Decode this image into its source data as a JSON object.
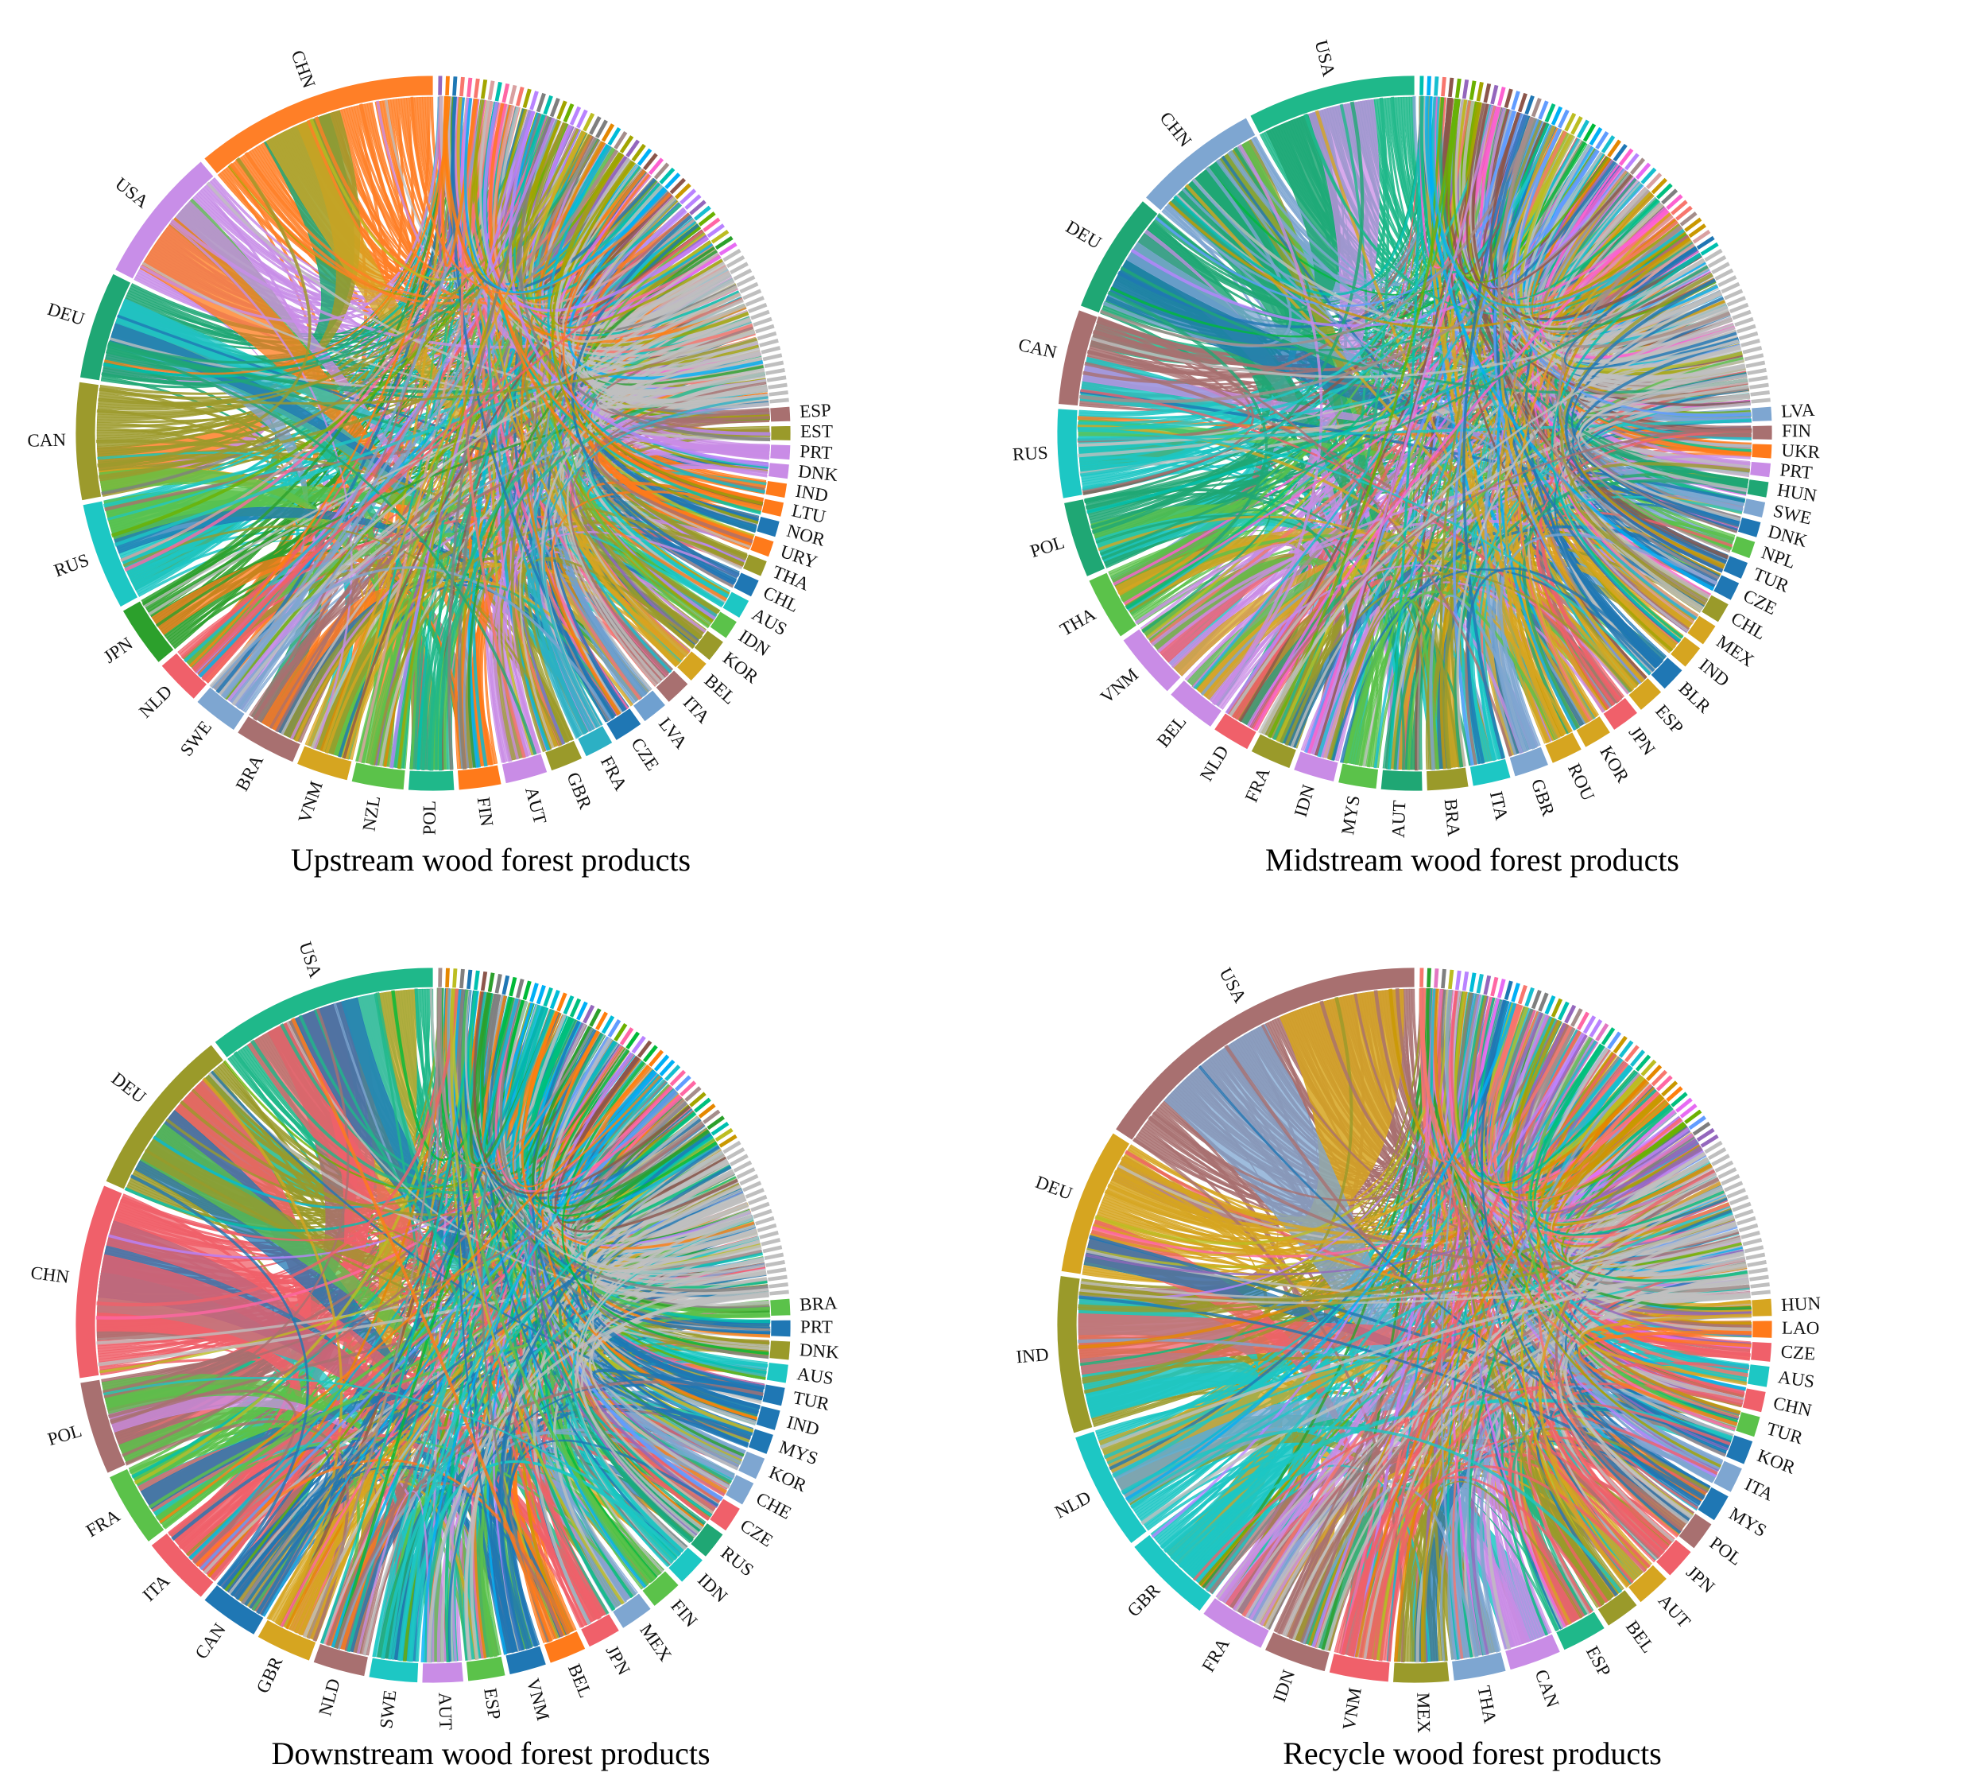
{
  "palette": [
    "#f8766d",
    "#e58700",
    "#c99800",
    "#a3a500",
    "#6bb100",
    "#00ba38",
    "#00bf7d",
    "#00c0af",
    "#00bcd8",
    "#00b0f6",
    "#619cff",
    "#b983ff",
    "#e76bf3",
    "#fd61d1",
    "#ff67a4",
    "#d9a0a0",
    "#a58d8b",
    "#8c564b",
    "#ff7f0e",
    "#2ca02c",
    "#1f77b4",
    "#17becf",
    "#bcbd22",
    "#9467bd",
    "#e377c2",
    "#7f7f7f"
  ],
  "panels": [
    {
      "caption": "Upstream wood forest products",
      "named_countries": [
        {
          "code": "CHN",
          "color": "#ff7f27",
          "share": 7.5
        },
        {
          "code": "USA",
          "color": "#c88ee8",
          "share": 4.2
        },
        {
          "code": "DEU",
          "color": "#1fa774",
          "share": 3.3
        },
        {
          "code": "CAN",
          "color": "#9c9a2c",
          "share": 3.6
        },
        {
          "code": "RUS",
          "color": "#1dc7c4",
          "share": 3.3
        },
        {
          "code": "JPN",
          "color": "#2ca02c",
          "share": 1.9
        },
        {
          "code": "NLD",
          "color": "#f0606a",
          "share": 1.4
        },
        {
          "code": "SWE",
          "color": "#7ea6d1",
          "share": 1.4
        },
        {
          "code": "BRA",
          "color": "#a87070",
          "share": 1.9
        },
        {
          "code": "VNM",
          "color": "#d6a520",
          "share": 1.6
        },
        {
          "code": "NZL",
          "color": "#5bc24a",
          "share": 1.6
        },
        {
          "code": "POL",
          "color": "#1fb88a",
          "share": 1.4
        },
        {
          "code": "FIN",
          "color": "#ff7a1a",
          "share": 1.3
        },
        {
          "code": "AUT",
          "color": "#c98ce6",
          "share": 1.3
        },
        {
          "code": "GBR",
          "color": "#9a9a2a",
          "share": 1.0
        },
        {
          "code": "FRA",
          "color": "#2cb0c4",
          "share": 0.9
        },
        {
          "code": "CZE",
          "color": "#1f77b4",
          "share": 0.9
        },
        {
          "code": "LVA",
          "color": "#6fa0d0",
          "share": 0.8
        },
        {
          "code": "ITA",
          "color": "#a87070",
          "share": 0.8
        },
        {
          "code": "BEL",
          "color": "#d6a520",
          "share": 0.7
        },
        {
          "code": "KOR",
          "color": "#9a9a2a",
          "share": 0.7
        },
        {
          "code": "IDN",
          "color": "#5bc24a",
          "share": 0.6
        },
        {
          "code": "AUS",
          "color": "#1dc7c4",
          "share": 0.6
        },
        {
          "code": "CHL",
          "color": "#1f77b4",
          "share": 0.55
        },
        {
          "code": "THA",
          "color": "#9a9a2a",
          "share": 0.5
        },
        {
          "code": "URY",
          "color": "#ff7a1a",
          "share": 0.5
        },
        {
          "code": "NOR",
          "color": "#1f77b4",
          "share": 0.5
        },
        {
          "code": "LTU",
          "color": "#ff7a1a",
          "share": 0.45
        },
        {
          "code": "IND",
          "color": "#ff7a1a",
          "share": 0.45
        },
        {
          "code": "DNK",
          "color": "#c98ce6",
          "share": 0.45
        },
        {
          "code": "PRT",
          "color": "#c98ce6",
          "share": 0.45
        },
        {
          "code": "EST",
          "color": "#9a9a2a",
          "share": 0.45
        },
        {
          "code": "ESP",
          "color": "#a87070",
          "share": 0.45
        }
      ]
    },
    {
      "caption": "Midstream wood forest products",
      "named_countries": [
        {
          "code": "USA",
          "color": "#1fb88a",
          "share": 5.3
        },
        {
          "code": "CHN",
          "color": "#7ea6d1",
          "share": 4.0
        },
        {
          "code": "DEU",
          "color": "#1fa774",
          "share": 3.8
        },
        {
          "code": "CAN",
          "color": "#a87070",
          "share": 3.0
        },
        {
          "code": "RUS",
          "color": "#1dc7c4",
          "share": 2.8
        },
        {
          "code": "POL",
          "color": "#1fa774",
          "share": 2.4
        },
        {
          "code": "THA",
          "color": "#5bc24a",
          "share": 2.0
        },
        {
          "code": "VNM",
          "color": "#c98ce6",
          "share": 2.1
        },
        {
          "code": "BEL",
          "color": "#c98ce6",
          "share": 1.6
        },
        {
          "code": "NLD",
          "color": "#f0606a",
          "share": 1.2
        },
        {
          "code": "FRA",
          "color": "#9a9a2a",
          "share": 1.3
        },
        {
          "code": "IDN",
          "color": "#c98ce6",
          "share": 1.3
        },
        {
          "code": "MYS",
          "color": "#5bc24a",
          "share": 1.2
        },
        {
          "code": "AUT",
          "color": "#1fa774",
          "share": 1.3
        },
        {
          "code": "BRA",
          "color": "#9a9a2a",
          "share": 1.3
        },
        {
          "code": "ITA",
          "color": "#1dc7c4",
          "share": 1.2
        },
        {
          "code": "GBR",
          "color": "#7ea6d1",
          "share": 1.1
        },
        {
          "code": "ROU",
          "color": "#d6a520",
          "share": 1.0
        },
        {
          "code": "KOR",
          "color": "#d6a520",
          "share": 0.9
        },
        {
          "code": "JPN",
          "color": "#f0606a",
          "share": 0.9
        },
        {
          "code": "ESP",
          "color": "#d6a520",
          "share": 0.85
        },
        {
          "code": "BLR",
          "color": "#1f77b4",
          "share": 0.8
        },
        {
          "code": "IND",
          "color": "#d6a520",
          "share": 0.75
        },
        {
          "code": "MEX",
          "color": "#d6a520",
          "share": 0.7
        },
        {
          "code": "CHL",
          "color": "#9a9a2a",
          "share": 0.65
        },
        {
          "code": "CZE",
          "color": "#1f77b4",
          "share": 0.6
        },
        {
          "code": "TUR",
          "color": "#1f77b4",
          "share": 0.55
        },
        {
          "code": "NPL",
          "color": "#5bc24a",
          "share": 0.55
        },
        {
          "code": "DNK",
          "color": "#1f77b4",
          "share": 0.5
        },
        {
          "code": "SWE",
          "color": "#7ea6d1",
          "share": 0.5
        },
        {
          "code": "HUN",
          "color": "#1fa774",
          "share": 0.5
        },
        {
          "code": "PRT",
          "color": "#c98ce6",
          "share": 0.45
        },
        {
          "code": "UKR",
          "color": "#ff7a1a",
          "share": 0.45
        },
        {
          "code": "FIN",
          "color": "#a87070",
          "share": 0.45
        },
        {
          "code": "LVA",
          "color": "#7ea6d1",
          "share": 0.45
        }
      ]
    },
    {
      "caption": "Downstream wood forest products",
      "named_countries": [
        {
          "code": "USA",
          "color": "#1fb88a",
          "share": 6.2
        },
        {
          "code": "DEU",
          "color": "#9a9a2a",
          "share": 4.6
        },
        {
          "code": "CHN",
          "color": "#f0606a",
          "share": 5.2
        },
        {
          "code": "POL",
          "color": "#a87070",
          "share": 2.5
        },
        {
          "code": "FRA",
          "color": "#5bc24a",
          "share": 2.0
        },
        {
          "code": "ITA",
          "color": "#f0606a",
          "share": 1.9
        },
        {
          "code": "CAN",
          "color": "#1f77b4",
          "share": 1.6
        },
        {
          "code": "GBR",
          "color": "#d6a520",
          "share": 1.5
        },
        {
          "code": "NLD",
          "color": "#a87070",
          "share": 1.4
        },
        {
          "code": "SWE",
          "color": "#1dc7c4",
          "share": 1.3
        },
        {
          "code": "AUT",
          "color": "#c98ce6",
          "share": 1.1
        },
        {
          "code": "ESP",
          "color": "#5bc24a",
          "share": 1.0
        },
        {
          "code": "VNM",
          "color": "#1f77b4",
          "share": 1.0
        },
        {
          "code": "BEL",
          "color": "#ff7a1a",
          "share": 1.0
        },
        {
          "code": "JPN",
          "color": "#f0606a",
          "share": 0.9
        },
        {
          "code": "MEX",
          "color": "#7ea6d1",
          "share": 0.9
        },
        {
          "code": "FIN",
          "color": "#5bc24a",
          "share": 0.85
        },
        {
          "code": "IDN",
          "color": "#1dc7c4",
          "share": 0.8
        },
        {
          "code": "RUS",
          "color": "#1fa774",
          "share": 0.75
        },
        {
          "code": "CZE",
          "color": "#f0606a",
          "share": 0.7
        },
        {
          "code": "CHE",
          "color": "#7ea6d1",
          "share": 0.65
        },
        {
          "code": "KOR",
          "color": "#7ea6d1",
          "share": 0.6
        },
        {
          "code": "MYS",
          "color": "#1f77b4",
          "share": 0.55
        },
        {
          "code": "IND",
          "color": "#1f77b4",
          "share": 0.55
        },
        {
          "code": "TUR",
          "color": "#1f77b4",
          "share": 0.5
        },
        {
          "code": "AUS",
          "color": "#1dc7c4",
          "share": 0.5
        },
        {
          "code": "DNK",
          "color": "#9a9a2a",
          "share": 0.5
        },
        {
          "code": "PRT",
          "color": "#1f77b4",
          "share": 0.45
        },
        {
          "code": "BRA",
          "color": "#5bc24a",
          "share": 0.45
        }
      ]
    },
    {
      "caption": "Recycle wood forest products",
      "named_countries": [
        {
          "code": "USA",
          "color": "#a87070",
          "share": 10.0
        },
        {
          "code": "DEU",
          "color": "#d6a520",
          "share": 4.2
        },
        {
          "code": "IND",
          "color": "#9a9a2a",
          "share": 4.5
        },
        {
          "code": "NLD",
          "color": "#1dc7c4",
          "share": 3.4
        },
        {
          "code": "GBR",
          "color": "#1dc7c4",
          "share": 2.6
        },
        {
          "code": "FRA",
          "color": "#c98ce6",
          "share": 1.9
        },
        {
          "code": "IDN",
          "color": "#a87070",
          "share": 1.8
        },
        {
          "code": "VNM",
          "color": "#f0606a",
          "share": 1.7
        },
        {
          "code": "MEX",
          "color": "#9a9a2a",
          "share": 1.6
        },
        {
          "code": "THA",
          "color": "#7ea6d1",
          "share": 1.5
        },
        {
          "code": "CAN",
          "color": "#c98ce6",
          "share": 1.5
        },
        {
          "code": "ESP",
          "color": "#1fb88a",
          "share": 1.3
        },
        {
          "code": "BEL",
          "color": "#9a9a2a",
          "share": 1.0
        },
        {
          "code": "AUT",
          "color": "#d6a520",
          "share": 1.0
        },
        {
          "code": "JPN",
          "color": "#f0606a",
          "share": 0.9
        },
        {
          "code": "POL",
          "color": "#a87070",
          "share": 0.85
        },
        {
          "code": "MYS",
          "color": "#1f77b4",
          "share": 0.8
        },
        {
          "code": "ITA",
          "color": "#7ea6d1",
          "share": 0.75
        },
        {
          "code": "KOR",
          "color": "#1f77b4",
          "share": 0.7
        },
        {
          "code": "TUR",
          "color": "#5bc24a",
          "share": 0.6
        },
        {
          "code": "CHN",
          "color": "#f0606a",
          "share": 0.6
        },
        {
          "code": "AUS",
          "color": "#1dc7c4",
          "share": 0.6
        },
        {
          "code": "CZE",
          "color": "#f0606a",
          "share": 0.55
        },
        {
          "code": "LAO",
          "color": "#ff7a1a",
          "share": 0.5
        },
        {
          "code": "HUN",
          "color": "#d6a520",
          "share": 0.5
        }
      ]
    }
  ]
}
